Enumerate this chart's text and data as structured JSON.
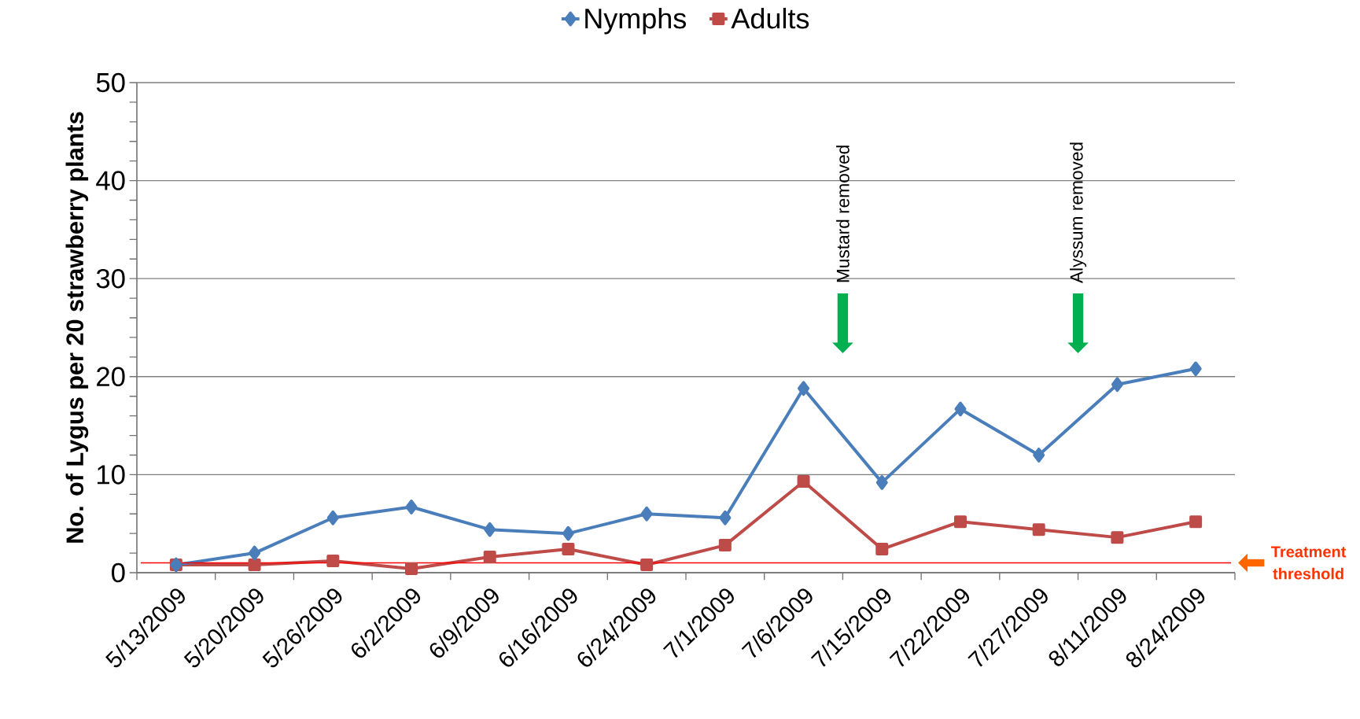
{
  "chart_data": {
    "type": "line",
    "ylabel": "No. of Lygus per 20 strawberry plants",
    "categories": [
      "5/13/2009",
      "5/20/2009",
      "5/26/2009",
      "6/2/2009",
      "6/9/2009",
      "6/16/2009",
      "6/24/2009",
      "7/1/2009",
      "7/6/2009",
      "7/15/2009",
      "7/22/2009",
      "7/27/2009",
      "8/11/2009",
      "8/24/2009"
    ],
    "series": [
      {
        "name": "Nymphs",
        "color": "#4a7ebb",
        "marker": "diamond",
        "values": [
          0.8,
          2.0,
          5.6,
          6.7,
          4.4,
          4.0,
          6.0,
          5.6,
          18.8,
          9.2,
          16.7,
          12.0,
          19.2,
          20.8
        ]
      },
      {
        "name": "Adults",
        "color": "#be4b48",
        "marker": "square",
        "values": [
          0.8,
          0.8,
          1.2,
          0.4,
          1.6,
          2.4,
          0.8,
          2.8,
          9.3,
          2.4,
          5.2,
          4.4,
          3.6,
          5.2
        ]
      }
    ],
    "ylim": [
      0,
      50
    ],
    "yticks": [
      0,
      10,
      20,
      30,
      40,
      50
    ],
    "grid": "y",
    "legend": "top",
    "ref_lines": [
      {
        "axis": "y",
        "value": 1,
        "label": "Treatment threshold",
        "color": "#ff0000"
      }
    ],
    "annotations": [
      "Mustard removed",
      "Alyssum removed"
    ]
  }
}
